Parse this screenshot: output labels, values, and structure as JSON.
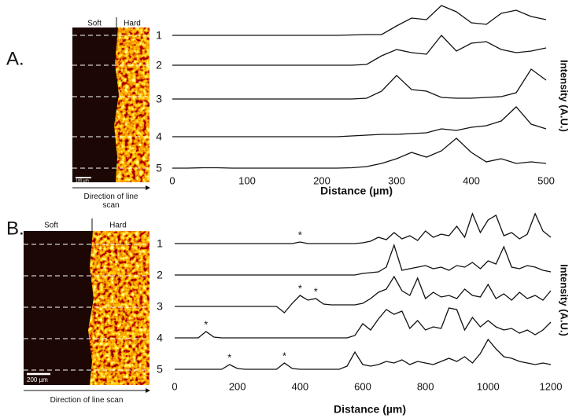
{
  "panels": [
    {
      "label": "A.",
      "image": {
        "soft": "Soft",
        "hard": "Hard",
        "scale_bar": "100 µm",
        "caption": "Direction of line scan"
      }
    },
    {
      "label": "B.",
      "image": {
        "soft": "Soft",
        "hard": "Hard",
        "scale_bar": "200 µm",
        "caption": "Direction of line scan"
      }
    }
  ],
  "chart_data": [
    {
      "type": "line",
      "x_label": "Distance (µm)",
      "y_label": "Intensity (A.U.)",
      "xlim": [
        0,
        500
      ],
      "xticks": [
        0,
        100,
        200,
        300,
        400,
        500
      ],
      "x": [
        0,
        20,
        40,
        60,
        80,
        100,
        120,
        140,
        160,
        180,
        200,
        220,
        240,
        260,
        280,
        300,
        320,
        340,
        360,
        380,
        400,
        420,
        440,
        460,
        480,
        500
      ],
      "series": [
        {
          "name": "1",
          "color": "#111111",
          "values": [
            0,
            0,
            0,
            0,
            0,
            0,
            0,
            0,
            0,
            0,
            0,
            0,
            0.5,
            1,
            1,
            12,
            22,
            20,
            38,
            30,
            16,
            14,
            28,
            32,
            24,
            20
          ]
        },
        {
          "name": "2",
          "color": "#111111",
          "values": [
            0,
            0,
            0,
            0,
            0,
            0,
            0,
            0,
            0,
            0,
            0,
            0,
            0,
            1,
            12,
            20,
            16,
            14,
            38,
            18,
            28,
            30,
            20,
            16,
            18,
            22
          ]
        },
        {
          "name": "3",
          "color": "#111111",
          "values": [
            0,
            0,
            0,
            0,
            0,
            0,
            0,
            0,
            0,
            0,
            0,
            0,
            0,
            1,
            10,
            30,
            12,
            10,
            2,
            1,
            1,
            2,
            3,
            8,
            38,
            24
          ]
        },
        {
          "name": "4",
          "color": "#111111",
          "values": [
            0,
            0,
            0,
            0,
            0,
            0,
            0,
            0,
            0,
            0,
            0,
            0,
            1,
            2,
            3,
            3,
            4,
            5,
            10,
            8,
            12,
            14,
            20,
            38,
            16,
            10
          ]
        },
        {
          "name": "5",
          "color": "#111111",
          "values": [
            0,
            0,
            0.5,
            0.5,
            0,
            0,
            0,
            0,
            0,
            0,
            0,
            0,
            0.5,
            2,
            6,
            12,
            20,
            14,
            22,
            38,
            20,
            8,
            12,
            6,
            8,
            6
          ]
        }
      ]
    },
    {
      "type": "line",
      "x_label": "Distance (µm)",
      "y_label": "Intensity (A.U.)",
      "xlim": [
        0,
        1200
      ],
      "xticks": [
        0,
        200,
        400,
        600,
        800,
        1000,
        1200
      ],
      "x": [
        0,
        25,
        50,
        75,
        100,
        125,
        150,
        175,
        200,
        225,
        250,
        275,
        300,
        325,
        350,
        375,
        400,
        425,
        450,
        475,
        500,
        525,
        550,
        575,
        600,
        625,
        650,
        675,
        700,
        725,
        750,
        775,
        800,
        825,
        850,
        875,
        900,
        925,
        950,
        975,
        1000,
        1025,
        1050,
        1075,
        1100,
        1125,
        1150,
        1175,
        1200
      ],
      "series": [
        {
          "name": "1",
          "color": "#111111",
          "annotations": [
            {
              "text": "*",
              "x": 400
            }
          ],
          "values": [
            0,
            0,
            0,
            0,
            0,
            0,
            0,
            0,
            0,
            0,
            0,
            0,
            0,
            0,
            0,
            0,
            2,
            0,
            0,
            0,
            0,
            0,
            0,
            0,
            1,
            3,
            8,
            5,
            14,
            6,
            10,
            4,
            16,
            8,
            12,
            10,
            22,
            8,
            38,
            14,
            30,
            36,
            10,
            14,
            6,
            12,
            38,
            16,
            8
          ]
        },
        {
          "name": "2",
          "color": "#111111",
          "values": [
            0,
            0,
            0,
            0,
            0,
            0,
            0,
            0,
            0,
            0,
            0,
            0,
            0,
            0,
            0,
            0,
            0,
            0,
            0,
            0,
            0,
            0,
            0,
            0,
            2,
            3,
            4,
            10,
            38,
            6,
            8,
            10,
            12,
            8,
            10,
            6,
            12,
            10,
            16,
            8,
            18,
            14,
            36,
            10,
            8,
            12,
            10,
            6,
            4
          ]
        },
        {
          "name": "3",
          "color": "#111111",
          "annotations": [
            {
              "text": "*",
              "x": 400
            },
            {
              "text": "*",
              "x": 450
            }
          ],
          "values": [
            0,
            0,
            0,
            0,
            0,
            0,
            0,
            0,
            0,
            0,
            0,
            0,
            0,
            0,
            -8,
            4,
            14,
            8,
            10,
            3,
            2,
            2,
            2,
            2,
            4,
            10,
            18,
            22,
            38,
            20,
            14,
            36,
            10,
            18,
            12,
            14,
            10,
            22,
            14,
            12,
            28,
            10,
            16,
            8,
            18,
            10,
            14,
            8,
            20
          ]
        },
        {
          "name": "4",
          "color": "#111111",
          "annotations": [
            {
              "text": "*",
              "x": 100
            }
          ],
          "values": [
            0,
            0,
            0,
            0,
            8,
            1,
            0,
            0,
            0,
            0,
            0,
            0,
            0,
            0,
            0,
            0,
            0,
            0,
            0,
            0,
            0,
            0,
            0,
            3,
            18,
            10,
            24,
            36,
            30,
            34,
            12,
            22,
            10,
            14,
            12,
            38,
            36,
            10,
            26,
            14,
            22,
            14,
            10,
            12,
            6,
            10,
            4,
            10,
            20
          ]
        },
        {
          "name": "5",
          "color": "#111111",
          "annotations": [
            {
              "text": "*",
              "x": 175
            },
            {
              "text": "*",
              "x": 350
            }
          ],
          "values": [
            0,
            0,
            0,
            0,
            0,
            0,
            0,
            6,
            1,
            0,
            0,
            0,
            0,
            0,
            8,
            1,
            0,
            0,
            0,
            0,
            0,
            0,
            4,
            22,
            6,
            4,
            6,
            10,
            8,
            12,
            6,
            10,
            8,
            6,
            10,
            14,
            10,
            16,
            8,
            20,
            38,
            26,
            16,
            14,
            10,
            8,
            6,
            8,
            6
          ]
        }
      ]
    }
  ]
}
